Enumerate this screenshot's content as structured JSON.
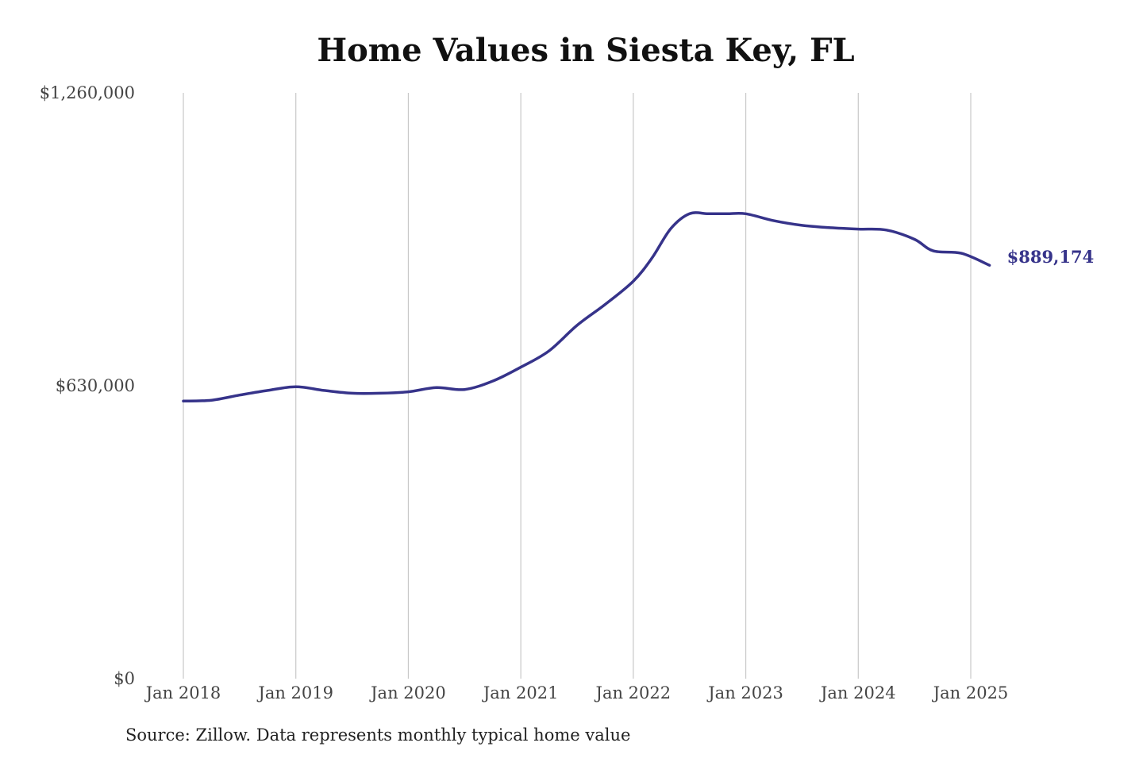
{
  "chart_data": {
    "type": "line",
    "title": "Home Values in Siesta Key, FL",
    "source": "Source: Zillow. Data represents monthly typical home value",
    "line_color": "#36338a",
    "grid_color": "#c8c8c8",
    "ylim": [
      0,
      1260000
    ],
    "y_ticks": [
      {
        "value": 0,
        "label": "$0"
      },
      {
        "value": 630000,
        "label": "$630,000"
      },
      {
        "value": 1260000,
        "label": "$1,260,000"
      }
    ],
    "x_range": [
      "2018-01",
      "2025-03"
    ],
    "x_ticks": [
      {
        "date": "2018-01",
        "label": "Jan 2018"
      },
      {
        "date": "2019-01",
        "label": "Jan 2019"
      },
      {
        "date": "2020-01",
        "label": "Jan 2020"
      },
      {
        "date": "2021-01",
        "label": "Jan 2021"
      },
      {
        "date": "2022-01",
        "label": "Jan 2022"
      },
      {
        "date": "2023-01",
        "label": "Jan 2023"
      },
      {
        "date": "2024-01",
        "label": "Jan 2024"
      },
      {
        "date": "2025-01",
        "label": "Jan 2025"
      }
    ],
    "grid": {
      "vertical": true,
      "horizontal": false
    },
    "end_label": "$889,174",
    "series": [
      {
        "points": [
          {
            "x": "2018-01",
            "y": 597000
          },
          {
            "x": "2018-04",
            "y": 599000
          },
          {
            "x": "2018-07",
            "y": 610000
          },
          {
            "x": "2018-10",
            "y": 620000
          },
          {
            "x": "2019-01",
            "y": 628000
          },
          {
            "x": "2019-04",
            "y": 620000
          },
          {
            "x": "2019-07",
            "y": 614000
          },
          {
            "x": "2019-10",
            "y": 614000
          },
          {
            "x": "2020-01",
            "y": 617000
          },
          {
            "x": "2020-04",
            "y": 626000
          },
          {
            "x": "2020-07",
            "y": 622000
          },
          {
            "x": "2020-10",
            "y": 640000
          },
          {
            "x": "2021-01",
            "y": 670000
          },
          {
            "x": "2021-04",
            "y": 705000
          },
          {
            "x": "2021-07",
            "y": 760000
          },
          {
            "x": "2021-10",
            "y": 805000
          },
          {
            "x": "2022-01",
            "y": 855000
          },
          {
            "x": "2022-03",
            "y": 905000
          },
          {
            "x": "2022-05",
            "y": 968000
          },
          {
            "x": "2022-07",
            "y": 1000000
          },
          {
            "x": "2022-09",
            "y": 1000000
          },
          {
            "x": "2022-11",
            "y": 1000000
          },
          {
            "x": "2023-01",
            "y": 1000000
          },
          {
            "x": "2023-04",
            "y": 985000
          },
          {
            "x": "2023-07",
            "y": 975000
          },
          {
            "x": "2023-10",
            "y": 970000
          },
          {
            "x": "2024-01",
            "y": 967000
          },
          {
            "x": "2024-04",
            "y": 965000
          },
          {
            "x": "2024-07",
            "y": 945000
          },
          {
            "x": "2024-09",
            "y": 920000
          },
          {
            "x": "2024-12",
            "y": 915000
          },
          {
            "x": "2025-03",
            "y": 889174
          }
        ]
      }
    ]
  }
}
